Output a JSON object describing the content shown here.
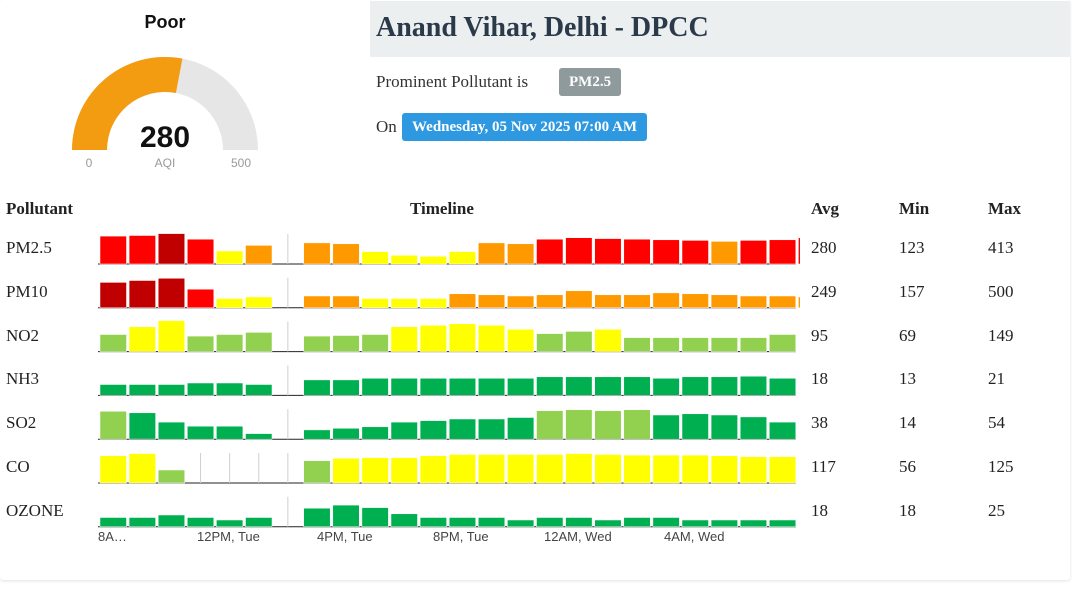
{
  "gauge": {
    "status": "Poor",
    "value": 280,
    "label": "AQI",
    "min": 0,
    "max": 500,
    "color": "#f39c12",
    "track_color": "#e6e6e6"
  },
  "station": {
    "name": "Anand Vihar, Delhi - DPCC",
    "prominent_label": "Prominent Pollutant is",
    "prominent_value": "PM2.5",
    "on_label": "On",
    "date": "Wednesday, 05 Nov 2025 07:00 AM"
  },
  "table": {
    "headers": {
      "pollutant": "Pollutant",
      "timeline": "Timeline",
      "avg": "Avg",
      "min": "Min",
      "max": "Max"
    },
    "x_ticks": [
      "8A…",
      "12PM, Tue",
      "4PM, Tue",
      "8PM, Tue",
      "12AM, Wed",
      "4AM, Wed"
    ],
    "colors": {
      "G": "#00b050",
      "L": "#92d050",
      "Y": "#ffff00",
      "O": "#ff9900",
      "R": "#ff0000",
      "D": "#c00000"
    },
    "rows": [
      {
        "name": "PM2.5",
        "avg": "280",
        "min": "123",
        "max": "413",
        "levels": [
          0.9,
          0.92,
          0.98,
          0.8,
          0.42,
          0.6,
          0,
          0.68,
          0.65,
          0.4,
          0.28,
          0.25,
          0.4,
          0.68,
          0.65,
          0.8,
          0.85,
          0.82,
          0.8,
          0.78,
          0.76,
          0.73,
          0.76,
          0.78,
          0.85
        ],
        "colors": [
          "R",
          "R",
          "D",
          "R",
          "Y",
          "O",
          "",
          "O",
          "O",
          "Y",
          "Y",
          "Y",
          "Y",
          "O",
          "O",
          "R",
          "R",
          "R",
          "R",
          "R",
          "R",
          "O",
          "R",
          "R",
          "R"
        ]
      },
      {
        "name": "PM10",
        "avg": "249",
        "min": "157",
        "max": "500",
        "levels": [
          0.82,
          0.88,
          0.95,
          0.6,
          0.3,
          0.35,
          0,
          0.38,
          0.38,
          0.3,
          0.3,
          0.3,
          0.45,
          0.42,
          0.38,
          0.42,
          0.55,
          0.42,
          0.42,
          0.48,
          0.45,
          0.42,
          0.38,
          0.38,
          0.35
        ],
        "colors": [
          "D",
          "D",
          "D",
          "R",
          "Y",
          "Y",
          "",
          "O",
          "O",
          "Y",
          "Y",
          "Y",
          "O",
          "O",
          "O",
          "O",
          "O",
          "O",
          "O",
          "O",
          "O",
          "O",
          "O",
          "O",
          "O"
        ]
      },
      {
        "name": "NO2",
        "avg": "95",
        "min": "69",
        "max": "149",
        "levels": [
          0.55,
          0.8,
          1.0,
          0.5,
          0.55,
          0.62,
          0,
          0.5,
          0.52,
          0.55,
          0.8,
          0.85,
          0.9,
          0.85,
          0.72,
          0.58,
          0.65,
          0.72,
          0.45,
          0.45,
          0.45,
          0.45,
          0.45,
          0.55
        ],
        "colors": [
          "L",
          "Y",
          "Y",
          "L",
          "L",
          "L",
          "",
          "L",
          "L",
          "L",
          "Y",
          "Y",
          "Y",
          "Y",
          "Y",
          "L",
          "L",
          "Y",
          "L",
          "L",
          "L",
          "L",
          "L",
          "L"
        ]
      },
      {
        "name": "NH3",
        "avg": "18",
        "min": "13",
        "max": "21",
        "levels": [
          0.35,
          0.35,
          0.35,
          0.4,
          0.4,
          0.35,
          0,
          0.5,
          0.5,
          0.55,
          0.55,
          0.55,
          0.55,
          0.55,
          0.55,
          0.6,
          0.6,
          0.6,
          0.6,
          0.55,
          0.6,
          0.6,
          0.62,
          0.55
        ],
        "colors": [
          "G",
          "G",
          "G",
          "G",
          "G",
          "G",
          "",
          "G",
          "G",
          "G",
          "G",
          "G",
          "G",
          "G",
          "G",
          "G",
          "G",
          "G",
          "G",
          "G",
          "G",
          "G",
          "G",
          "G"
        ]
      },
      {
        "name": "SO2",
        "avg": "38",
        "min": "14",
        "max": "54",
        "levels": [
          0.9,
          0.85,
          0.55,
          0.42,
          0.42,
          0.18,
          0,
          0.3,
          0.35,
          0.4,
          0.55,
          0.6,
          0.65,
          0.65,
          0.7,
          0.92,
          0.95,
          0.92,
          0.95,
          0.78,
          0.82,
          0.78,
          0.72,
          0.55
        ],
        "colors": [
          "L",
          "G",
          "G",
          "G",
          "G",
          "G",
          "",
          "G",
          "G",
          "G",
          "G",
          "G",
          "G",
          "G",
          "G",
          "L",
          "L",
          "L",
          "L",
          "G",
          "G",
          "G",
          "G",
          "G"
        ]
      },
      {
        "name": "CO",
        "avg": "117",
        "min": "56",
        "max": "125",
        "levels": [
          0.88,
          0.95,
          0.42,
          0,
          0,
          0,
          0,
          0.72,
          0.8,
          0.82,
          0.82,
          0.88,
          0.92,
          0.92,
          0.92,
          0.92,
          0.95,
          0.92,
          0.9,
          0.9,
          0.9,
          0.88,
          0.85,
          0.85
        ],
        "colors": [
          "Y",
          "Y",
          "L",
          "",
          "",
          "",
          "",
          "L",
          "Y",
          "Y",
          "Y",
          "Y",
          "Y",
          "Y",
          "Y",
          "Y",
          "Y",
          "Y",
          "Y",
          "Y",
          "Y",
          "Y",
          "Y",
          "Y"
        ]
      },
      {
        "name": "OZONE",
        "avg": "18",
        "min": "18",
        "max": "25",
        "levels": [
          0.3,
          0.3,
          0.38,
          0.3,
          0.22,
          0.3,
          0,
          0.6,
          0.7,
          0.62,
          0.42,
          0.3,
          0.3,
          0.3,
          0.22,
          0.3,
          0.3,
          0.22,
          0.3,
          0.3,
          0.22,
          0.22,
          0.22,
          0.22
        ],
        "colors": [
          "G",
          "G",
          "G",
          "G",
          "G",
          "G",
          "",
          "G",
          "G",
          "G",
          "G",
          "G",
          "G",
          "G",
          "G",
          "G",
          "G",
          "G",
          "G",
          "G",
          "G",
          "G",
          "G",
          "G"
        ]
      }
    ]
  }
}
